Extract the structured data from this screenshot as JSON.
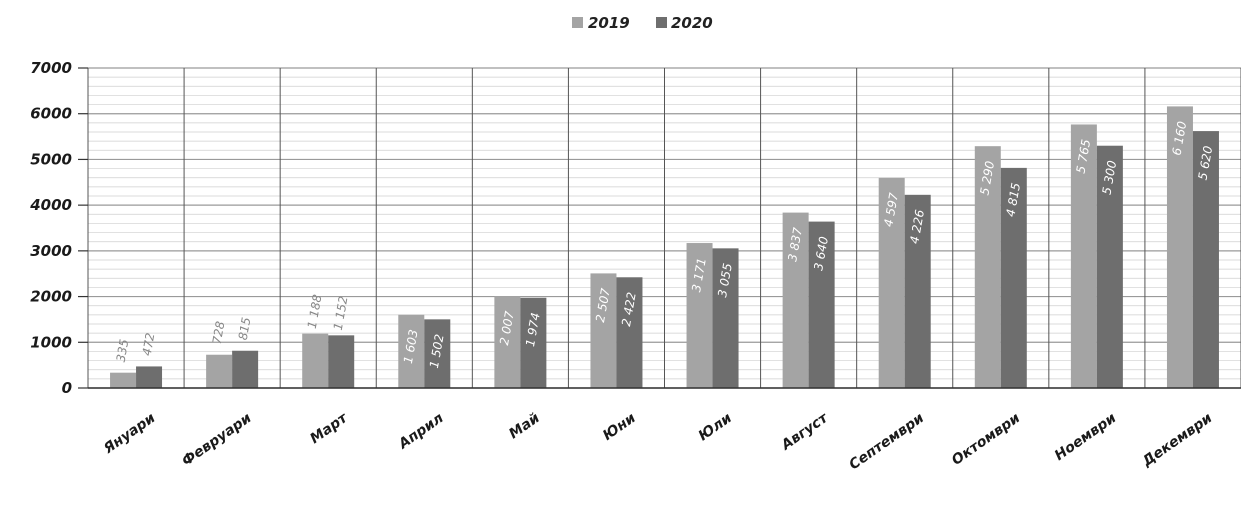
{
  "colors": {
    "series_2019": "#a4a4a4",
    "series_2020": "#6e6e6e",
    "grid": "#9a9a9a",
    "axis": "#333333"
  },
  "chart_data": {
    "type": "bar",
    "categories": [
      "Януари",
      "Февруари",
      "Март",
      "Април",
      "Май",
      "Юни",
      "Юли",
      "Август",
      "Септември",
      "Октомври",
      "Ноември",
      "Декември"
    ],
    "series": [
      {
        "name": "2019",
        "values": [
          335,
          728,
          1188,
          1603,
          2007,
          2507,
          3171,
          3837,
          4597,
          5290,
          5765,
          6160
        ],
        "labels": [
          "335",
          "728",
          "1 188",
          "1 603",
          "2 007",
          "2 507",
          "3 171",
          "3 837",
          "4 597",
          "5 290",
          "5 765",
          "6 160"
        ]
      },
      {
        "name": "2020",
        "values": [
          472,
          815,
          1152,
          1502,
          1974,
          2422,
          3055,
          3640,
          4226,
          4815,
          5300,
          5620
        ],
        "labels": [
          "472",
          "815",
          "1 152",
          "1 502",
          "1 974",
          "2 422",
          "3 055",
          "3 640",
          "4 226",
          "4 815",
          "5 300",
          "5 620"
        ]
      }
    ],
    "yticks": [
      "0",
      "1000",
      "2000",
      "3000",
      "4000",
      "5000",
      "6000",
      "7000"
    ],
    "ylim": [
      0,
      7000
    ],
    "grid": true,
    "legend": "top-center"
  }
}
